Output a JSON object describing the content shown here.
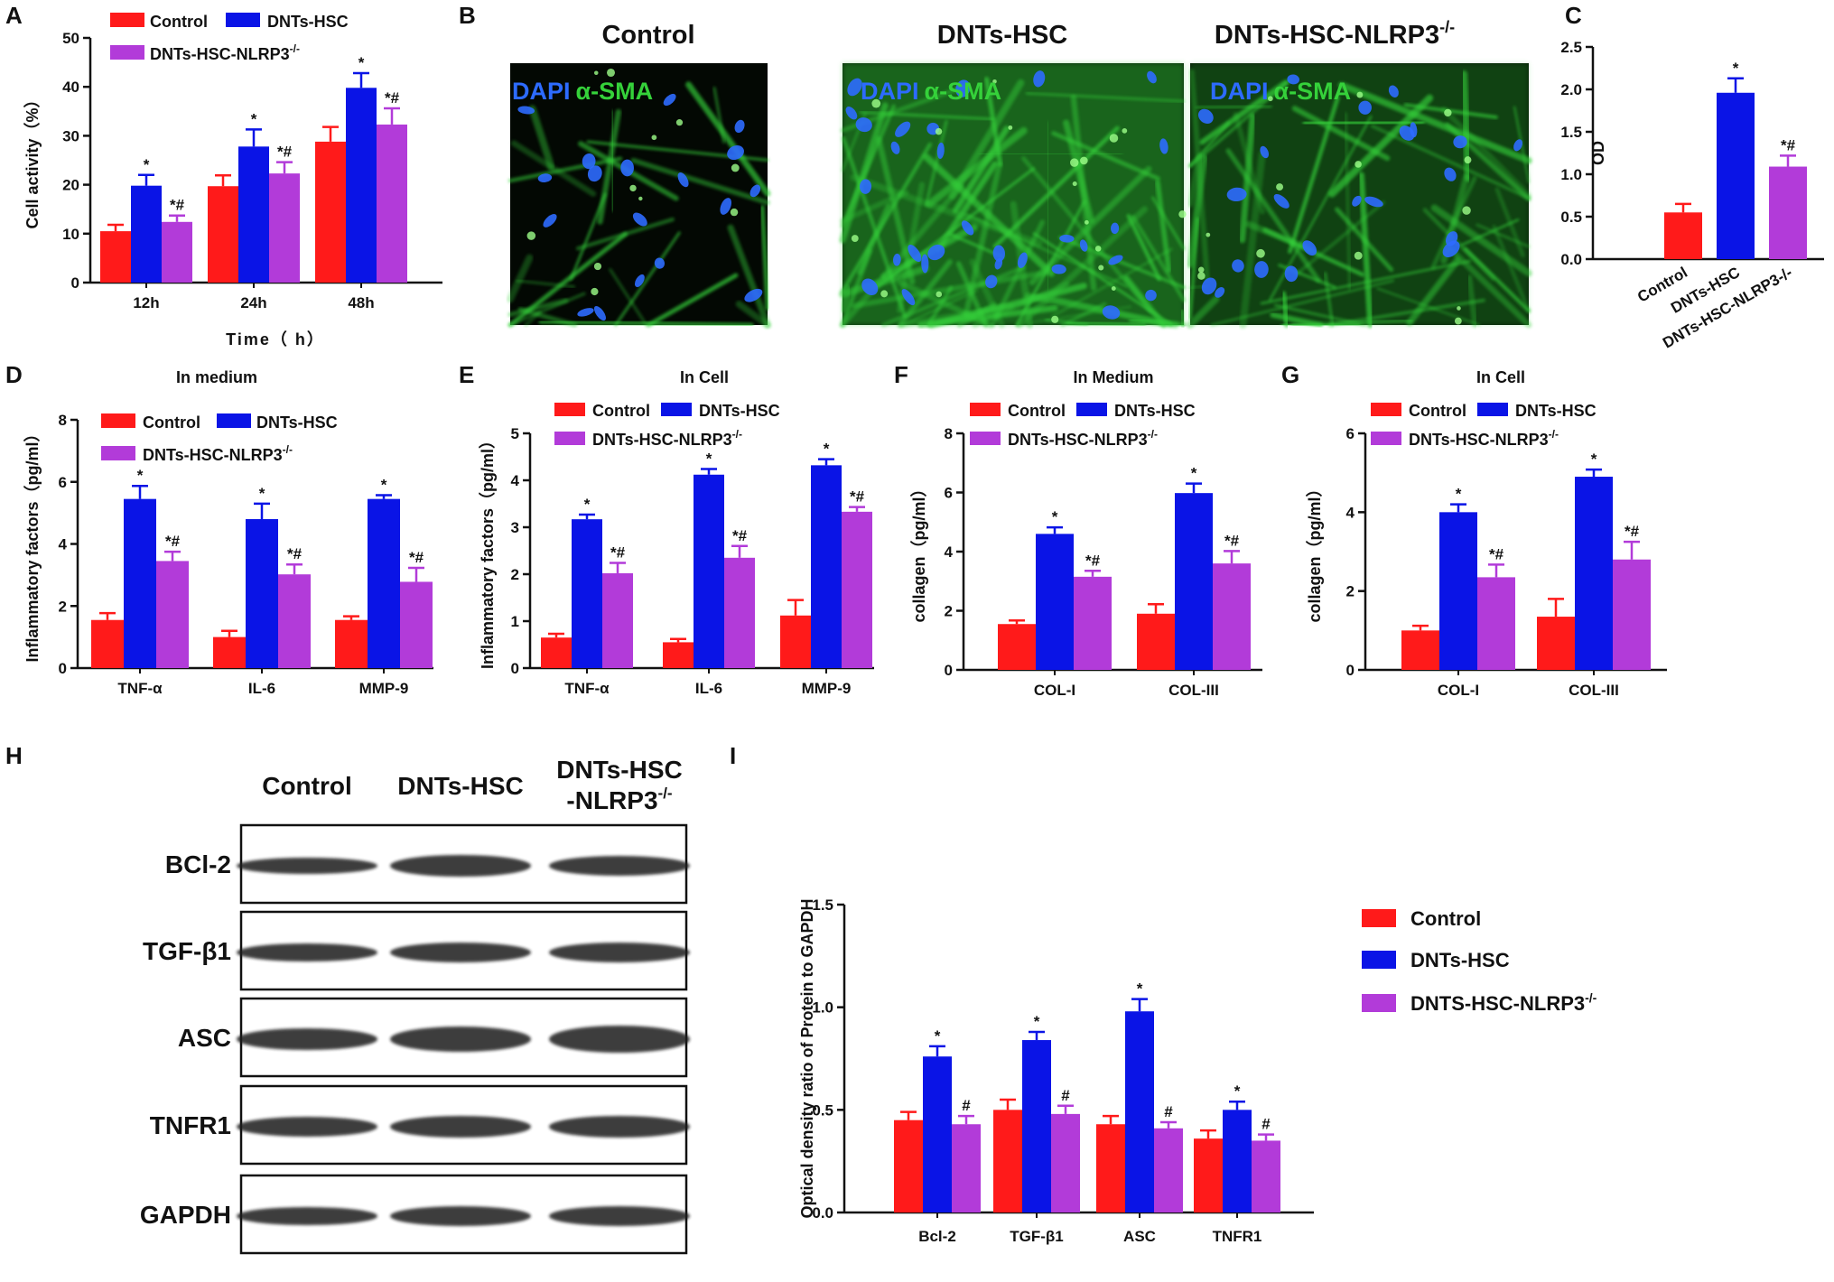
{
  "colors": {
    "control": "#ff1a1a",
    "dnts": "#0a14e6",
    "nlrp3": "#b23bd9",
    "fluor_green": "#35d13a",
    "fluor_blue": "#2d6bff"
  },
  "legend": {
    "control": "Control",
    "dnts": "DNTs-HSC",
    "nlrp3": "DNTs-HSC-NLRP3",
    "nlrp3_sup": "-/-",
    "nlrp3_caps": "DNTS-HSC-NLRP3"
  },
  "panel_labels": [
    "A",
    "B",
    "C",
    "D",
    "E",
    "F",
    "G",
    "H",
    "I"
  ],
  "microscopy": {
    "titles": [
      "Control",
      "DNTs-HSC",
      "DNTs-HSC-NLRP3"
    ],
    "title_sup": "-/-",
    "stain_dapi": "DAPI",
    "stain_sma": "α-SMA"
  },
  "western": {
    "columns": [
      "Control",
      "DNTs-HSC",
      "DNTs-HSC",
      "-NLRP3"
    ],
    "col_sup": "-/-",
    "rows": [
      "BCl-2",
      "TGF-β1",
      "ASC",
      "TNFR1",
      "GAPDH"
    ],
    "icons": "western-blot-bands"
  },
  "chart_data": [
    {
      "id": "A",
      "type": "bar",
      "title": "",
      "xlabel": "Time（ h）",
      "ylabel": "Cell activity（%）",
      "ylim": [
        0,
        50
      ],
      "yticks": [
        "0",
        "10",
        "20",
        "30",
        "40",
        "50"
      ],
      "categories": [
        "12h",
        "24h",
        "48h"
      ],
      "series": [
        {
          "name": "Control",
          "values": [
            10.5,
            19.7,
            28.8
          ],
          "errors": [
            1.3,
            2.2,
            3.0
          ],
          "marks": [
            "",
            "",
            ""
          ]
        },
        {
          "name": "DNTs-HSC",
          "values": [
            19.8,
            27.8,
            39.8
          ],
          "errors": [
            2.2,
            3.5,
            3.0
          ],
          "marks": [
            "*",
            "*",
            "*"
          ]
        },
        {
          "name": "DNTs-HSC-NLRP3-/-",
          "values": [
            12.4,
            22.3,
            32.3
          ],
          "errors": [
            1.3,
            2.3,
            3.3
          ],
          "marks": [
            "*#",
            "*#",
            "*#"
          ]
        }
      ],
      "legend": "top"
    },
    {
      "id": "C",
      "type": "bar",
      "title": "",
      "xlabel": "",
      "ylabel": "OD",
      "ylim": [
        0,
        2.5
      ],
      "yticks": [
        "0.0",
        "0.5",
        "1.0",
        "1.5",
        "2.0",
        "2.5"
      ],
      "categories": [
        "Control",
        "DNTs-HSC",
        "DNTs-HSC-NLRP3-/-"
      ],
      "values": [
        0.55,
        1.96,
        1.09
      ],
      "errors": [
        0.1,
        0.17,
        0.13
      ],
      "marks": [
        "",
        "*",
        "*#"
      ],
      "legend": "none"
    },
    {
      "id": "D",
      "type": "bar",
      "title": "In medium",
      "xlabel": "",
      "ylabel": "Inflammatory factors（pg/ml）",
      "ylim": [
        0,
        8
      ],
      "yticks": [
        "0",
        "2",
        "4",
        "6",
        "8"
      ],
      "categories": [
        "TNF-α",
        "IL-6",
        "MMP-9"
      ],
      "series": [
        {
          "name": "Control",
          "values": [
            1.55,
            1.0,
            1.55
          ],
          "errors": [
            0.22,
            0.2,
            0.12
          ],
          "marks": [
            "",
            "",
            ""
          ]
        },
        {
          "name": "DNTs-HSC",
          "values": [
            5.45,
            4.8,
            5.45
          ],
          "errors": [
            0.42,
            0.5,
            0.12
          ],
          "marks": [
            "*",
            "*",
            "*"
          ]
        },
        {
          "name": "DNTs-HSC-NLRP3-/-",
          "values": [
            3.45,
            3.02,
            2.78
          ],
          "errors": [
            0.3,
            0.32,
            0.45
          ],
          "marks": [
            "*#",
            "*#",
            "*#"
          ]
        }
      ],
      "legend": "top"
    },
    {
      "id": "E",
      "type": "bar",
      "title": "In Cell",
      "xlabel": "",
      "ylabel": "Inflammatory factors（pg/ml）",
      "ylim": [
        0,
        5
      ],
      "yticks": [
        "0",
        "1",
        "2",
        "3",
        "4",
        "5"
      ],
      "categories": [
        "TNF-α",
        "IL-6",
        "MMP-9"
      ],
      "series": [
        {
          "name": "Control",
          "values": [
            0.65,
            0.55,
            1.12
          ],
          "errors": [
            0.08,
            0.07,
            0.33
          ],
          "marks": [
            "",
            "",
            ""
          ]
        },
        {
          "name": "DNTs-HSC",
          "values": [
            3.17,
            4.12,
            4.32
          ],
          "errors": [
            0.1,
            0.12,
            0.13
          ],
          "marks": [
            "*",
            "*",
            "*"
          ]
        },
        {
          "name": "DNTs-HSC-NLRP3-/-",
          "values": [
            2.02,
            2.35,
            3.33
          ],
          "errors": [
            0.22,
            0.25,
            0.1
          ],
          "marks": [
            "*#",
            "*#",
            "*#"
          ]
        }
      ],
      "legend": "top"
    },
    {
      "id": "F",
      "type": "bar",
      "title": "In Medium",
      "xlabel": "",
      "ylabel": "collagen（pg/ml）",
      "ylim": [
        0,
        8
      ],
      "yticks": [
        "0",
        "2",
        "4",
        "6",
        "8"
      ],
      "categories": [
        "COL-I",
        "COL-III"
      ],
      "series": [
        {
          "name": "Control",
          "values": [
            1.55,
            1.9
          ],
          "errors": [
            0.12,
            0.32
          ],
          "marks": [
            "",
            ""
          ]
        },
        {
          "name": "DNTs-HSC",
          "values": [
            4.6,
            5.98
          ],
          "errors": [
            0.22,
            0.32
          ],
          "marks": [
            "*",
            "*"
          ]
        },
        {
          "name": "DNTs-HSC-NLRP3-/-",
          "values": [
            3.15,
            3.6
          ],
          "errors": [
            0.2,
            0.42
          ],
          "marks": [
            "*#",
            "*#"
          ]
        }
      ],
      "legend": "top"
    },
    {
      "id": "G",
      "type": "bar",
      "title": "In Cell",
      "xlabel": "",
      "ylabel": "collagen（pg/ml）",
      "ylim": [
        0,
        6
      ],
      "yticks": [
        "0",
        "2",
        "4",
        "6"
      ],
      "categories": [
        "COL-I",
        "COL-III"
      ],
      "series": [
        {
          "name": "Control",
          "values": [
            1.0,
            1.35
          ],
          "errors": [
            0.12,
            0.45
          ],
          "marks": [
            "",
            ""
          ]
        },
        {
          "name": "DNTs-HSC",
          "values": [
            4.0,
            4.9
          ],
          "errors": [
            0.2,
            0.18
          ],
          "marks": [
            "*",
            "*"
          ]
        },
        {
          "name": "DNTs-HSC-NLRP3-/-",
          "values": [
            2.35,
            2.8
          ],
          "errors": [
            0.32,
            0.45
          ],
          "marks": [
            "*#",
            "*#"
          ]
        }
      ],
      "legend": "top"
    },
    {
      "id": "I",
      "type": "bar",
      "title": "",
      "xlabel": "",
      "ylabel": "Optical density ratio of Protein to GAPDH",
      "ylim": [
        0,
        1.5
      ],
      "yticks": [
        "0.0",
        "0.5",
        "1.0",
        "1.5"
      ],
      "categories": [
        "Bcl-2",
        "TGF-β1",
        "ASC",
        "TNFR1"
      ],
      "series": [
        {
          "name": "Control",
          "values": [
            0.45,
            0.5,
            0.43,
            0.36
          ],
          "errors": [
            0.04,
            0.05,
            0.04,
            0.04
          ],
          "marks": [
            "",
            "",
            "",
            ""
          ]
        },
        {
          "name": "DNTs-HSC",
          "values": [
            0.76,
            0.84,
            0.98,
            0.5
          ],
          "errors": [
            0.05,
            0.04,
            0.06,
            0.04
          ],
          "marks": [
            "*",
            "*",
            "*",
            "*"
          ]
        },
        {
          "name": "DNTS-HSC-NLRP3-/-",
          "values": [
            0.43,
            0.48,
            0.41,
            0.35
          ],
          "errors": [
            0.04,
            0.04,
            0.03,
            0.03
          ],
          "marks": [
            "#",
            "#",
            "#",
            "#"
          ]
        }
      ],
      "legend": "right"
    }
  ]
}
